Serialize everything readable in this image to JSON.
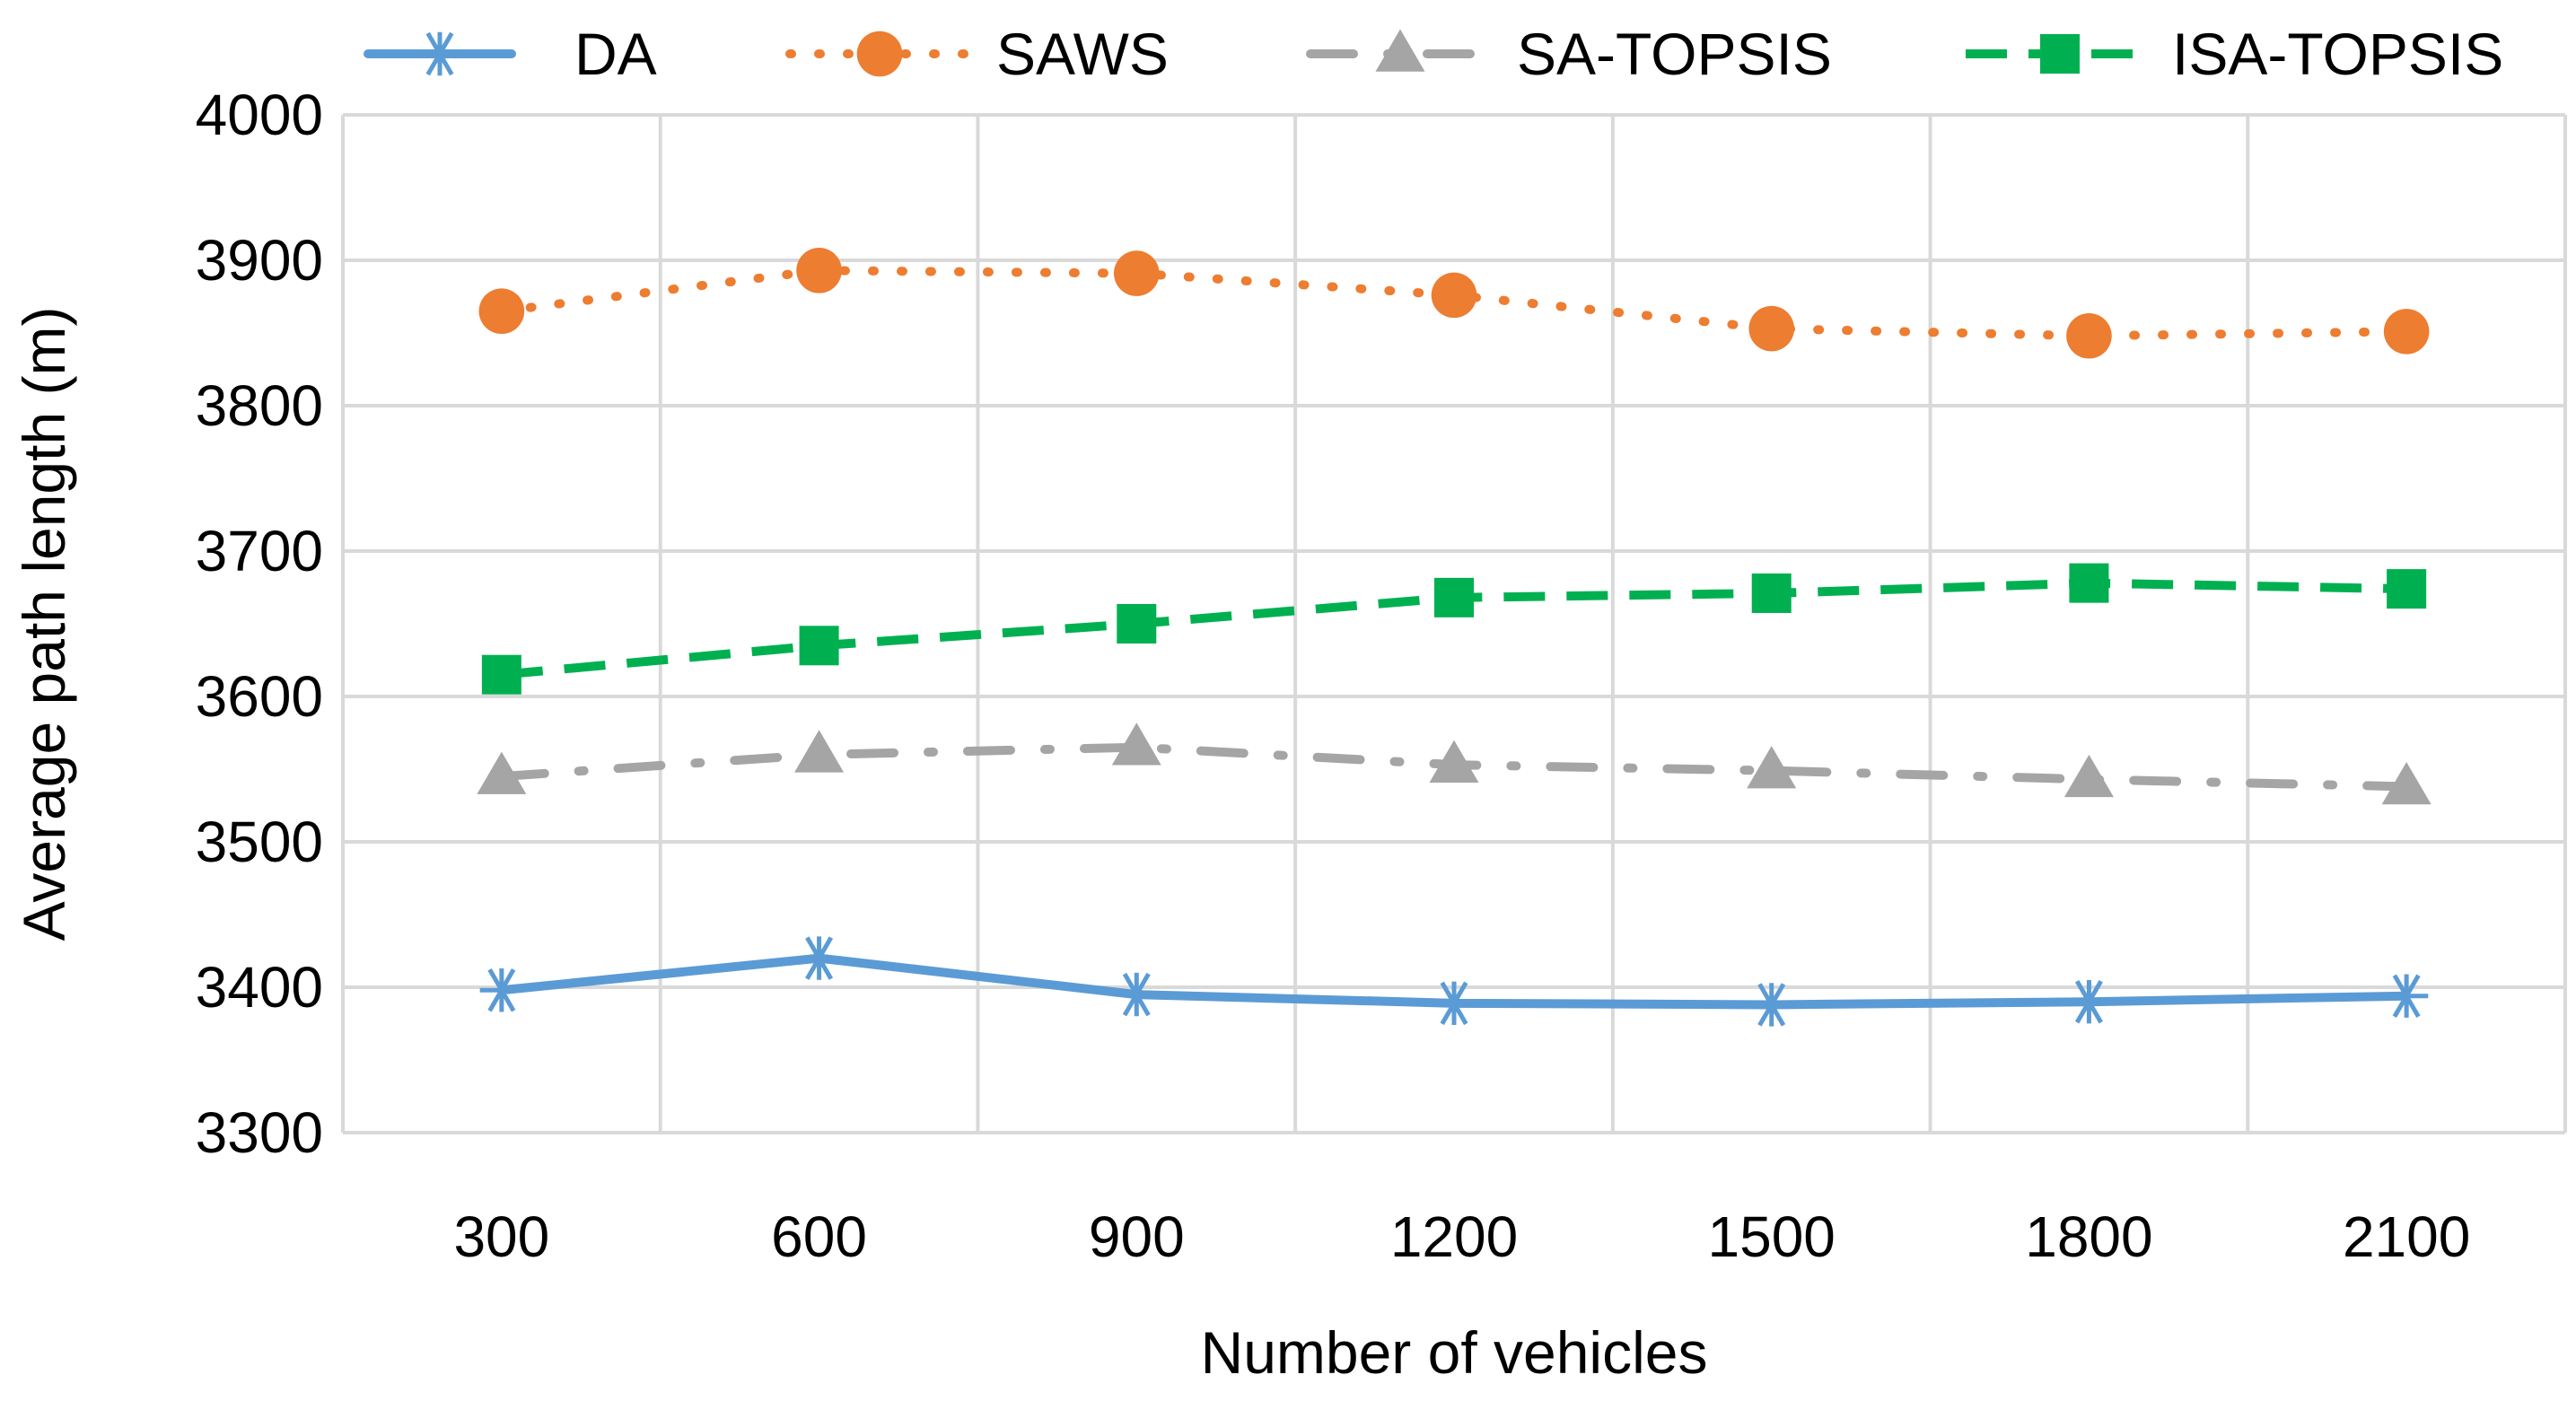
{
  "chart_data": {
    "type": "line",
    "title": "",
    "xlabel": "Number of vehicles",
    "ylabel": "Average path length (m)",
    "categories": [
      "300",
      "600",
      "900",
      "1200",
      "1500",
      "1800",
      "2100"
    ],
    "ylim": [
      3300,
      4000
    ],
    "yticks": [
      "3300",
      "3400",
      "3500",
      "3600",
      "3700",
      "3800",
      "3900",
      "4000"
    ],
    "grid": true,
    "legend_position": "top",
    "series": [
      {
        "name": "DA",
        "values": [
          3398,
          3420,
          3395,
          3389,
          3388,
          3390,
          3394
        ],
        "color": "#5B9BD5",
        "marker": "asterisk",
        "line_style": "solid"
      },
      {
        "name": "SAWS",
        "values": [
          3865,
          3893,
          3891,
          3876,
          3853,
          3848,
          3851
        ],
        "color": "#ED7D31",
        "marker": "circle",
        "line_style": "dotted"
      },
      {
        "name": "SA-TOPSIS",
        "values": [
          3545,
          3560,
          3565,
          3553,
          3549,
          3543,
          3538
        ],
        "color": "#A5A5A5",
        "marker": "triangle",
        "line_style": "dash-dot"
      },
      {
        "name": "ISA-TOPSIS",
        "values": [
          3615,
          3635,
          3650,
          3668,
          3671,
          3678,
          3674
        ],
        "color": "#00B050",
        "marker": "square",
        "line_style": "dashed"
      }
    ]
  }
}
